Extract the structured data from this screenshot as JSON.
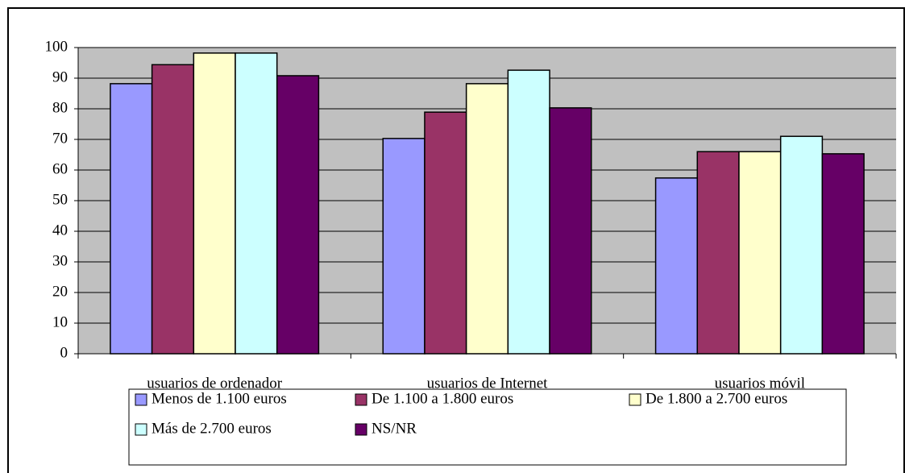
{
  "chart_data": {
    "type": "bar",
    "categories": [
      "usuarios de ordenador",
      "usuarios de Internet",
      "usuarios móvil"
    ],
    "series": [
      {
        "name": "Menos de 1.100 euros",
        "color": "#9999ff",
        "values": [
          88.2,
          70.3,
          57.4
        ]
      },
      {
        "name": "De 1.100 a 1.800 euros",
        "color": "#993366",
        "values": [
          94.4,
          78.9,
          66
        ]
      },
      {
        "name": "De 1.800 a 2.700 euros",
        "color": "#ffffcc",
        "values": [
          98.2,
          88.2,
          66
        ]
      },
      {
        "name": "Más de 2.700 euros",
        "color": "#ccffff",
        "values": [
          98.2,
          92.6,
          71
        ]
      },
      {
        "name": "NS/NR",
        "color": "#660066",
        "values": [
          90.8,
          80.3,
          65.3
        ]
      }
    ],
    "ylim": [
      0,
      100
    ],
    "yticks": [
      0,
      10,
      20,
      30,
      40,
      50,
      60,
      70,
      80,
      90,
      100
    ],
    "grid": true,
    "plot_background": "#c0c0c0"
  }
}
